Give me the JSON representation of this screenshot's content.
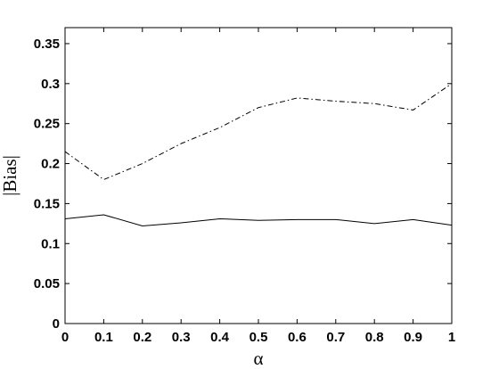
{
  "chart_data": {
    "type": "line",
    "xlabel": "α",
    "ylabel": "|Bias|",
    "xlim": [
      0,
      1
    ],
    "ylim": [
      0,
      0.37
    ],
    "grid": false,
    "x": [
      0,
      0.1,
      0.2,
      0.3,
      0.4,
      0.5,
      0.6,
      0.7,
      0.8,
      0.9,
      1.0
    ],
    "x_ticks": [
      "0",
      "0.1",
      "0.2",
      "0.3",
      "0.4",
      "0.5",
      "0.6",
      "0.7",
      "0.8",
      "0.9",
      "1"
    ],
    "y_ticks": [
      "0",
      "0.05",
      "0.1",
      "0.15",
      "0.2",
      "0.25",
      "0.3",
      "0.35"
    ],
    "series": [
      {
        "line_style": "dash-dot",
        "color": "#000000",
        "values": [
          0.215,
          0.18,
          0.2,
          0.225,
          0.245,
          0.27,
          0.282,
          0.278,
          0.275,
          0.267,
          0.3
        ]
      },
      {
        "line_style": "solid",
        "color": "#000000",
        "values": [
          0.131,
          0.136,
          0.122,
          0.126,
          0.131,
          0.129,
          0.13,
          0.13,
          0.125,
          0.13,
          0.123
        ]
      }
    ]
  }
}
